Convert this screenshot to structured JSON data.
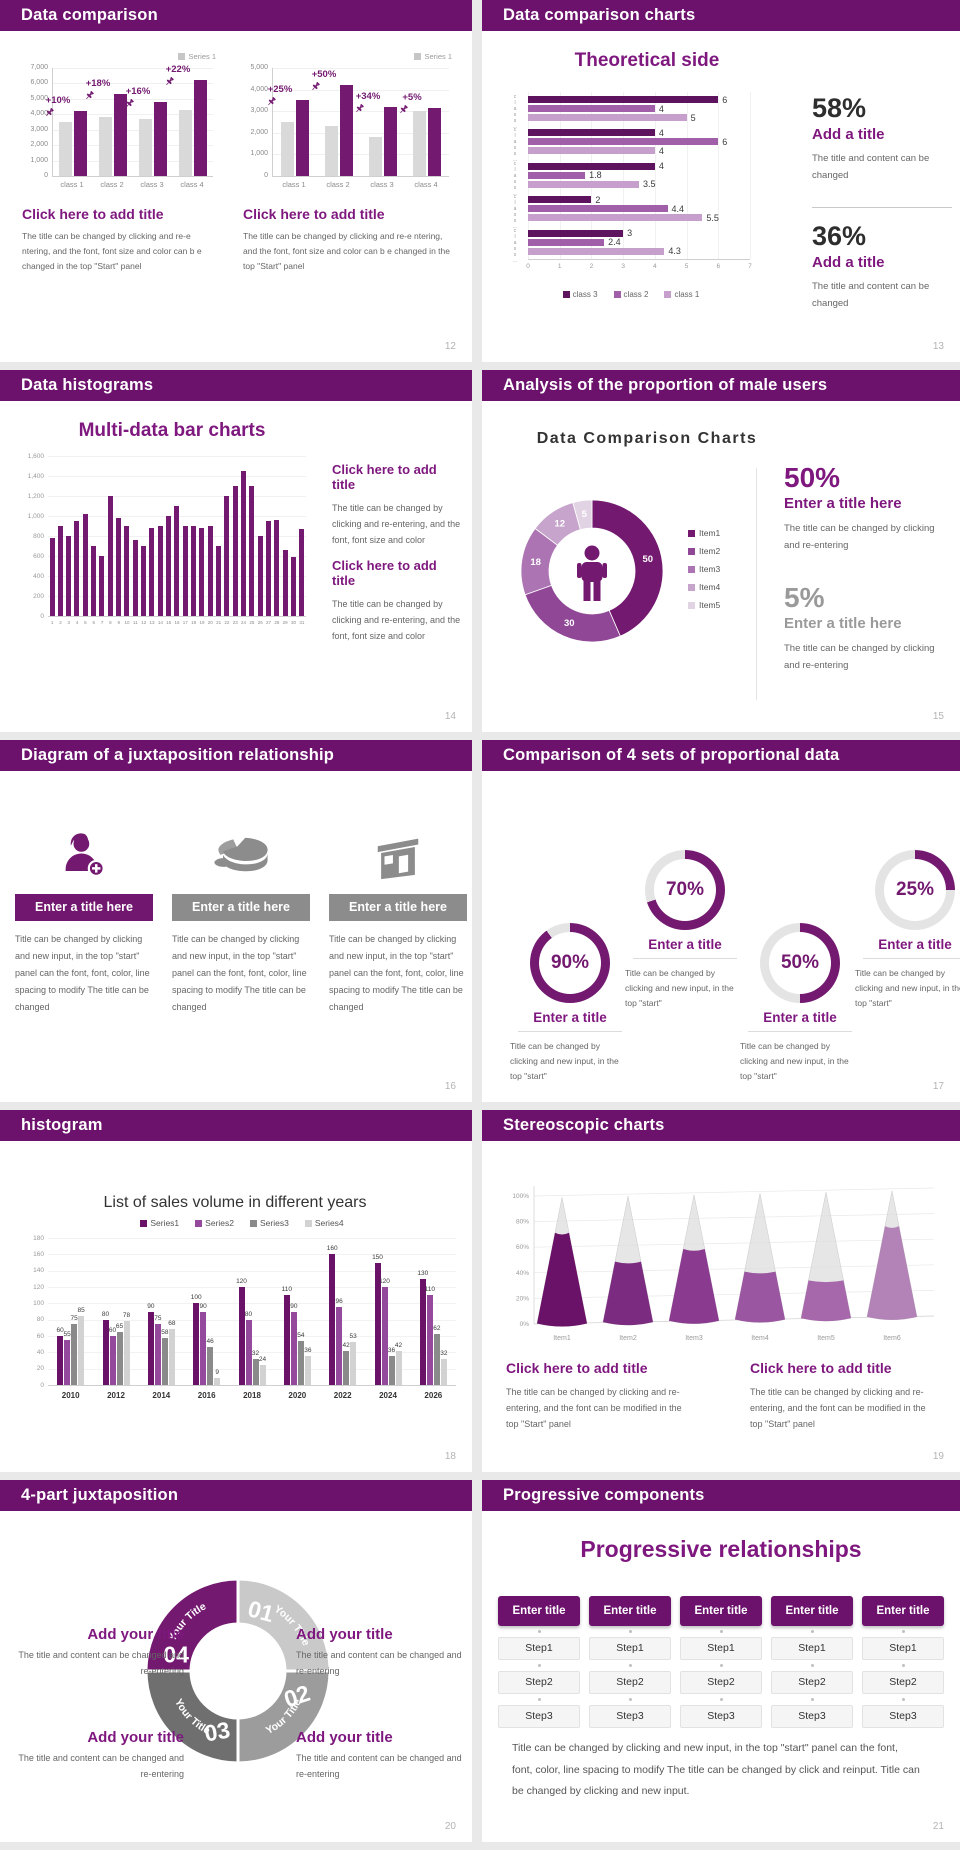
{
  "colors": {
    "header_purple": "#6C116C",
    "accent_purple": "#731970",
    "title_purple": "#7E177E",
    "gray_bar": "#D9D9D9",
    "body_text": "#666666",
    "page_bg": "#E9E9E9"
  },
  "slides": {
    "s12": {
      "header": "Data comparison",
      "page": "12",
      "blocks": [
        {
          "title": "Click here to add title",
          "body": "The title can be changed by clicking and re-e ntering, and the font, font size and color can b e changed in the top \"Start\" panel"
        },
        {
          "title": "Click here to add title",
          "body": "The title can be changed by clicking and re-e ntering, and the font, font size and color can b e changed in the top \"Start\" panel"
        }
      ]
    },
    "s13": {
      "header": "Data comparison charts",
      "page": "13",
      "stats": [
        {
          "pct": "58%",
          "title": "Add a title",
          "body": "The title and content can be changed"
        },
        {
          "pct": "36%",
          "title": "Add a title",
          "body": "The title and content can be changed"
        }
      ]
    },
    "s14": {
      "header": "Data histograms",
      "page": "14",
      "blocks": [
        {
          "title": "Click here to add title",
          "body": "The title can be changed by clicking and re-entering, and the font, font size and color"
        },
        {
          "title": "Click here to add title",
          "body": "The title can be changed by clicking and re-entering, and the font, font size and color"
        }
      ]
    },
    "s15": {
      "header": "Analysis of the proportion of male users",
      "page": "15",
      "stats": [
        {
          "pct": "50%",
          "title": "Enter a title here",
          "body": "The title can be changed by clicking and re-entering"
        },
        {
          "pct": "5%",
          "title": "Enter a title here",
          "body": "The title can be changed by clicking and re-entering"
        }
      ]
    },
    "s16": {
      "header": "Diagram of a juxtaposition relationship",
      "page": "16",
      "columns": [
        {
          "title": "Enter a title here",
          "body": "Title can be changed by clicking and new input, in the top \"start\" panel can the font, font, color, line spacing to modify The title can be changed"
        },
        {
          "title": "Enter a title here",
          "body": "Title can be changed by clicking and new input, in the top \"start\" panel can the font, font, color, line spacing to modify The title can be changed"
        },
        {
          "title": "Enter a title here",
          "body": "Title can be changed by clicking and new input, in the top \"start\" panel can the font, font, color, line spacing to modify The title can be changed"
        }
      ]
    },
    "s17": {
      "header": "Comparison of 4 sets of proportional data",
      "page": "17",
      "item_title": "Enter a title",
      "item_body": "Title can be changed by clicking and new input, in the top \"start\""
    },
    "s18": {
      "header": "histogram",
      "page": "18"
    },
    "s19": {
      "header": "Stereoscopic charts",
      "page": "19",
      "blocks": [
        {
          "title": "Click here to add title",
          "body": "The title can be changed by clicking and re-entering, and the font can be modified in the top \"Start\" panel"
        },
        {
          "title": "Click here to add title",
          "body": "The title can be changed by clicking and re-entering, and the font can be modified in the top \"Start\" panel"
        }
      ]
    },
    "s20": {
      "header": "4-part juxtaposition",
      "page": "20",
      "texts": [
        {
          "title": "Add your title",
          "body": "The title and content can be changed and re-entering"
        },
        {
          "title": "Add your title",
          "body": "The title and content can be changed and re-entering"
        },
        {
          "title": "Add your title",
          "body": "The title and content can be changed and re-entering"
        },
        {
          "title": "Add your title",
          "body": "The title and content can be changed and re-entering"
        }
      ]
    },
    "s21": {
      "header": "Progressive components",
      "page": "21",
      "title": "Progressive relationships",
      "col_title": "Enter title",
      "steps": [
        "Step1",
        "Step2",
        "Step3"
      ],
      "num_columns": 5,
      "body": "Title can be changed by clicking and new input, in the top \"start\" panel can the font, font, color, line spacing to modify The title can be changed by click and reinput. Title can be changed by clicking and new input."
    }
  },
  "chart_data": [
    {
      "id": "s12a",
      "type": "bar",
      "title": "",
      "legend": "Series 1",
      "categories": [
        "class 1",
        "class 2",
        "class 3",
        "class 4"
      ],
      "series": [
        {
          "name": "base",
          "color": "#D9D9D9",
          "values": [
            3500,
            3800,
            3700,
            4300
          ]
        },
        {
          "name": "Series 1",
          "color": "#731970",
          "values": [
            4200,
            5300,
            4800,
            6200
          ]
        }
      ],
      "bar_labels": [
        "+10%",
        "+18%",
        "+16%",
        "+22%"
      ],
      "ylim": [
        0,
        7000
      ],
      "ytick": 1000
    },
    {
      "id": "s12b",
      "type": "bar",
      "title": "",
      "legend": "Series 1",
      "categories": [
        "class 1",
        "class 2",
        "class 3",
        "class 4"
      ],
      "series": [
        {
          "name": "base",
          "color": "#D9D9D9",
          "values": [
            2500,
            2300,
            1800,
            3000
          ]
        },
        {
          "name": "Series 1",
          "color": "#731970",
          "values": [
            3500,
            4200,
            3200,
            3150
          ]
        }
      ],
      "bar_labels": [
        "+25%",
        "+50%",
        "+34%",
        "+5%"
      ],
      "ylim": [
        0,
        5000
      ],
      "ytick": 1000
    },
    {
      "id": "s13",
      "type": "bar",
      "title": "Theoretical side",
      "orientation": "horizontal",
      "xlim": [
        0,
        7
      ],
      "xticks": [
        0,
        1,
        2,
        3,
        4,
        5,
        6,
        7
      ],
      "group_label": "class…",
      "legend": [
        "class 3",
        "class 2",
        "class 1"
      ],
      "colors": [
        "#5E135E",
        "#A05FA8",
        "#C79FCC"
      ],
      "groups": [
        [
          6,
          4,
          5
        ],
        [
          4,
          6,
          4
        ],
        [
          4,
          1.8,
          3.5
        ],
        [
          2,
          4.4,
          5.5
        ],
        [
          3,
          2.4,
          4.3
        ]
      ]
    },
    {
      "id": "s14",
      "type": "bar",
      "title": "Multi-data bar charts",
      "ylim": [
        0,
        1600
      ],
      "ytick": 200,
      "color": "#731970",
      "categories": [
        "1",
        "2",
        "3",
        "4",
        "5",
        "6",
        "7",
        "8",
        "9",
        "10",
        "11",
        "12",
        "13",
        "14",
        "15",
        "16",
        "17",
        "18",
        "19",
        "20",
        "21",
        "22",
        "23",
        "24",
        "25",
        "26",
        "27",
        "28",
        "29",
        "30",
        "31"
      ],
      "values": [
        780,
        900,
        800,
        950,
        1020,
        700,
        600,
        1200,
        980,
        900,
        760,
        700,
        880,
        900,
        1000,
        1100,
        900,
        900,
        880,
        900,
        700,
        1200,
        1300,
        1450,
        1300,
        800,
        950,
        960,
        660,
        590,
        870
      ]
    },
    {
      "id": "s15",
      "type": "pie",
      "title": "Data Comparison Charts",
      "labels": [
        "Item1",
        "Item2",
        "Item3",
        "Item4",
        "Item5"
      ],
      "values": [
        50,
        30,
        18,
        12,
        5
      ],
      "colors": [
        "#731970",
        "#8F4796",
        "#AC74B2",
        "#C7A4CC",
        "#E2D3E4"
      ]
    },
    {
      "id": "s17",
      "type": "pie",
      "subtype": "gauges",
      "values": [
        90,
        70,
        50,
        25
      ],
      "labels": [
        "90%",
        "70%",
        "50%",
        "25%"
      ],
      "color": "#731970",
      "track": "#E4E4E4"
    },
    {
      "id": "s18",
      "type": "bar",
      "title": "List of sales volume in different years",
      "ylim": [
        0,
        180
      ],
      "ytick": 20,
      "categories": [
        "2010",
        "2012",
        "2014",
        "2016",
        "2018",
        "2020",
        "2022",
        "2024",
        "2026"
      ],
      "series": [
        {
          "name": "Series1",
          "color": "#6A1168",
          "values": [
            60,
            80,
            90,
            100,
            120,
            110,
            160,
            150,
            130
          ]
        },
        {
          "name": "Series2",
          "color": "#94499C",
          "values": [
            55,
            60,
            75,
            90,
            80,
            90,
            96,
            120,
            110
          ]
        },
        {
          "name": "Series3",
          "color": "#8A8A8A",
          "values": [
            75,
            65,
            58,
            46,
            32,
            54,
            42,
            36,
            62
          ]
        },
        {
          "name": "Series4",
          "color": "#D2D2D2",
          "values": [
            85,
            78,
            68,
            9,
            24,
            36,
            53,
            42,
            32
          ]
        }
      ]
    },
    {
      "id": "s19",
      "type": "area",
      "subtype": "cone",
      "categories": [
        "Item1",
        "Item2",
        "Item3",
        "Item4",
        "Item5",
        "Item6"
      ],
      "values": [
        72,
        48,
        57,
        38,
        30,
        72
      ],
      "yticks": [
        "0%",
        "20%",
        "40%",
        "60%",
        "80%",
        "100%"
      ],
      "ylim": [
        0,
        100
      ],
      "colors": [
        "#6A1168",
        "#7C2C80",
        "#8A3A8F",
        "#9B56A1",
        "#A668AB",
        "#B383B8"
      ]
    },
    {
      "id": "s20",
      "type": "pie",
      "subtype": "4-part-ring",
      "labels": [
        "01",
        "02",
        "03",
        "04"
      ],
      "text": "Your Title",
      "colors": [
        "#C9C9C9",
        "#9C9C9C",
        "#6F6F6F",
        "#731970"
      ]
    }
  ]
}
